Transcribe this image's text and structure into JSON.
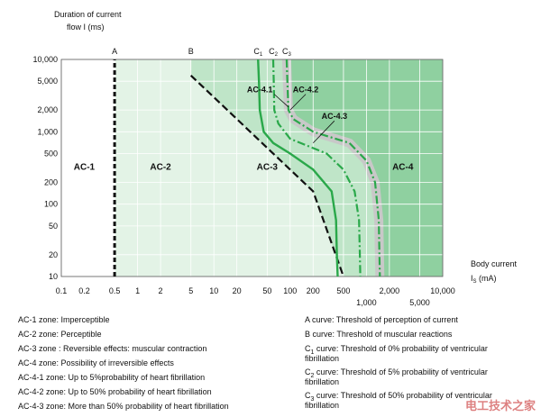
{
  "chart_data": {
    "type": "line",
    "ylabel_line1": "Duration of current",
    "ylabel_line2": "flow I (ms)",
    "xlabel_line1": "Body current",
    "xlabel_line2_prefix": "I",
    "xlabel_line2_sub": "S",
    "xlabel_line2_suffix": " (mA)",
    "x_scale": "log",
    "y_scale": "log",
    "xlim": [
      0.1,
      10000
    ],
    "ylim": [
      10,
      10000
    ],
    "x_ticks": [
      {
        "v": 0.1,
        "label": "0.1",
        "row": 1
      },
      {
        "v": 0.2,
        "label": "0.2",
        "row": 1
      },
      {
        "v": 0.5,
        "label": "0.5",
        "row": 1
      },
      {
        "v": 1,
        "label": "1",
        "row": 1
      },
      {
        "v": 2,
        "label": "2",
        "row": 1
      },
      {
        "v": 5,
        "label": "5",
        "row": 1
      },
      {
        "v": 10,
        "label": "10",
        "row": 1
      },
      {
        "v": 20,
        "label": "20",
        "row": 1
      },
      {
        "v": 50,
        "label": "50",
        "row": 1
      },
      {
        "v": 100,
        "label": "100",
        "row": 1
      },
      {
        "v": 200,
        "label": "200",
        "row": 1
      },
      {
        "v": 500,
        "label": "500",
        "row": 1
      },
      {
        "v": 1000,
        "label": "1,000",
        "row": 2
      },
      {
        "v": 2000,
        "label": "2,000",
        "row": 1
      },
      {
        "v": 5000,
        "label": "5,000",
        "row": 2
      },
      {
        "v": 10000,
        "label": "10,000",
        "row": 1
      }
    ],
    "y_ticks": [
      {
        "v": 10000,
        "label": "10,000"
      },
      {
        "v": 5000,
        "label": "5,000"
      },
      {
        "v": 2000,
        "label": "2,000"
      },
      {
        "v": 1000,
        "label": "1,000"
      },
      {
        "v": 500,
        "label": "500"
      },
      {
        "v": 200,
        "label": "200"
      },
      {
        "v": 100,
        "label": "100"
      },
      {
        "v": 50,
        "label": "50"
      },
      {
        "v": 20,
        "label": "20"
      },
      {
        "v": 10,
        "label": "10"
      }
    ],
    "zones": [
      {
        "label": "AC-1",
        "x_range": [
          0.1,
          0.5
        ],
        "label_at": [
          0.2,
          300
        ],
        "color": "#ffffff"
      },
      {
        "label": "AC-2",
        "x_range": [
          0.5,
          null
        ],
        "label_at": [
          2,
          300
        ],
        "color": "#e3f3e6"
      },
      {
        "label": "AC-3",
        "label_at": [
          50,
          300
        ],
        "color": "#bfe5c8"
      },
      {
        "label": "AC-4",
        "label_at": [
          3000,
          300
        ],
        "color": "#8fd0a0"
      }
    ],
    "curves": [
      {
        "name": "A",
        "style": "dashed-vertical",
        "points": [
          [
            0.5,
            10
          ],
          [
            0.5,
            10000
          ]
        ]
      },
      {
        "name": "B",
        "style": "dashed",
        "points": [
          [
            5,
            6000
          ],
          [
            10,
            3000
          ],
          [
            20,
            1500
          ],
          [
            50,
            600
          ],
          [
            100,
            300
          ],
          [
            200,
            150
          ],
          [
            500,
            10
          ]
        ]
      },
      {
        "name": "C",
        "sub": "1",
        "style": "solid",
        "points": [
          [
            38,
            10000
          ],
          [
            39,
            5000
          ],
          [
            40,
            2000
          ],
          [
            45,
            1000
          ],
          [
            60,
            700
          ],
          [
            100,
            500
          ],
          [
            200,
            300
          ],
          [
            350,
            150
          ],
          [
            400,
            60
          ],
          [
            410,
            20
          ],
          [
            420,
            10
          ]
        ]
      },
      {
        "name": "C",
        "sub": "2",
        "style": "dashdot",
        "points": [
          [
            60,
            10000
          ],
          [
            61,
            5000
          ],
          [
            62,
            2000
          ],
          [
            70,
            1300
          ],
          [
            100,
            800
          ],
          [
            300,
            500
          ],
          [
            500,
            300
          ],
          [
            700,
            150
          ],
          [
            800,
            60
          ],
          [
            820,
            20
          ],
          [
            830,
            10
          ]
        ]
      },
      {
        "name": "C",
        "sub": "3",
        "style": "dashdot",
        "points": [
          [
            90,
            10000
          ],
          [
            92,
            5000
          ],
          [
            95,
            2000
          ],
          [
            110,
            1500
          ],
          [
            200,
            1000
          ],
          [
            600,
            700
          ],
          [
            1000,
            400
          ],
          [
            1300,
            200
          ],
          [
            1450,
            60
          ],
          [
            1480,
            20
          ],
          [
            1500,
            10
          ]
        ]
      }
    ],
    "curve_labels": [
      {
        "text": "AC-4.1",
        "at": [
          40,
          3500
        ],
        "arrow_to": [
          95,
          2200
        ]
      },
      {
        "text": "AC-4.2",
        "at": [
          160,
          3500
        ],
        "arrow_to": [
          100,
          2000
        ]
      },
      {
        "text": "AC-4.3",
        "at": [
          380,
          1500
        ],
        "arrow_to": [
          200,
          700
        ]
      }
    ],
    "top_letters": [
      {
        "text": "A",
        "v": 0.5
      },
      {
        "text": "B",
        "v": 5
      },
      {
        "text": "C",
        "sub": "1",
        "v": 38
      },
      {
        "text": "C",
        "sub": "2",
        "v": 60
      },
      {
        "text": "C",
        "sub": "3",
        "v": 90
      }
    ],
    "colors": {
      "zone_ac2": "#e3f3e6",
      "zone_ac3": "#bfe5c8",
      "zone_ac4": "#8fd0a0",
      "band": "#c8c8c8",
      "curve": "#2aa84a",
      "dashed": "#111111",
      "grid": "#ffffff"
    }
  },
  "legend_left": [
    "AC-1 zone: Imperceptible",
    "AC-2 zone: Perceptible",
    "AC-3 zone : Reversible effects: muscular contraction",
    "AC-4 zone: Possibility of irreversible effects",
    "AC-4-1 zone: Up to 5%probability of heart fibrillation",
    "AC-4-2 zone: Up to 50% probability of heart fibrillation",
    "AC-4-3 zone: More than 50% probability of heart fibrillation"
  ],
  "legend_right": {
    "a_curve": "A curve: Threshold of perception of current",
    "b_curve": "B curve: Threshold of muscular reactions",
    "c1_prefix": "C",
    "c1_sub": "1",
    "c1_line1": " curve: Threshold of 0% probability of ventricular",
    "c1_line2": "fibrillation",
    "c2_prefix": "C",
    "c2_sub": "2",
    "c2_line1": " curve: Threshold of 5% probability of ventricular",
    "c2_line2": "fibrillation",
    "c3_prefix": "C",
    "c3_sub": "3",
    "c3_line1": " curve: Threshold of 50% probability of ventricular",
    "c3_line2": "fibrillation"
  },
  "watermark": "电工技术之家"
}
